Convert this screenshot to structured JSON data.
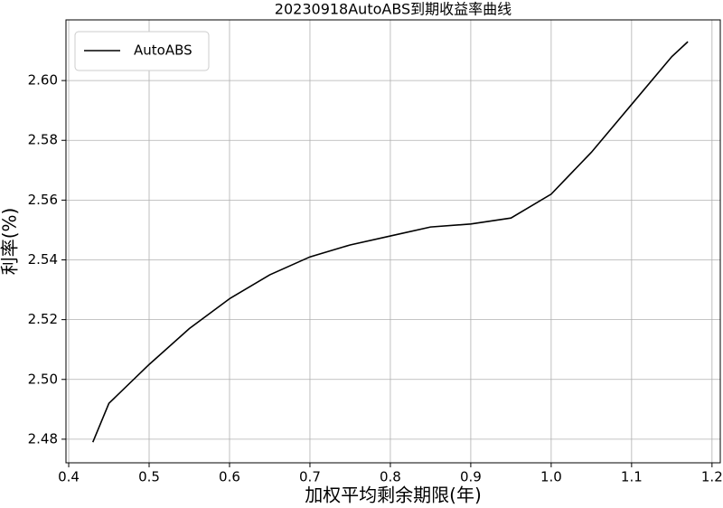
{
  "chart_data": {
    "type": "line",
    "title": "20230918AutoABS到期收益率曲线",
    "x_label": "加权平均剩余期限(年)",
    "y_label": "利率(%)",
    "x": [
      0.43,
      0.45,
      0.5,
      0.55,
      0.6,
      0.65,
      0.7,
      0.75,
      0.8,
      0.85,
      0.9,
      0.95,
      1.0,
      1.05,
      1.1,
      1.15,
      1.17
    ],
    "series": [
      {
        "name": "AutoABS",
        "color": "#000000",
        "values": [
          2.479,
          2.492,
          2.505,
          2.517,
          2.527,
          2.535,
          2.541,
          2.545,
          2.548,
          2.551,
          2.552,
          2.554,
          2.562,
          2.576,
          2.592,
          2.608,
          2.613
        ]
      }
    ],
    "xlim": [
      0.3966,
      1.2103
    ],
    "ylim": [
      2.4721,
      2.6203
    ],
    "xticks": [
      0.4,
      0.5,
      0.6,
      0.7,
      0.8,
      0.9,
      {
        "value": 1,
        "label": "1.0"
      },
      1.1,
      1.2
    ],
    "yticks": [
      {
        "value": 2.48,
        "label": "2.48"
      },
      {
        "value": 2.5,
        "label": "2.50"
      },
      {
        "value": 2.52,
        "label": "2.52"
      },
      {
        "value": 2.54,
        "label": "2.54"
      },
      {
        "value": 2.56,
        "label": "2.56"
      },
      {
        "value": 2.58,
        "label": "2.58"
      },
      {
        "value": 2.6,
        "label": "2.60"
      }
    ],
    "grid": true,
    "legend": "upper left"
  }
}
